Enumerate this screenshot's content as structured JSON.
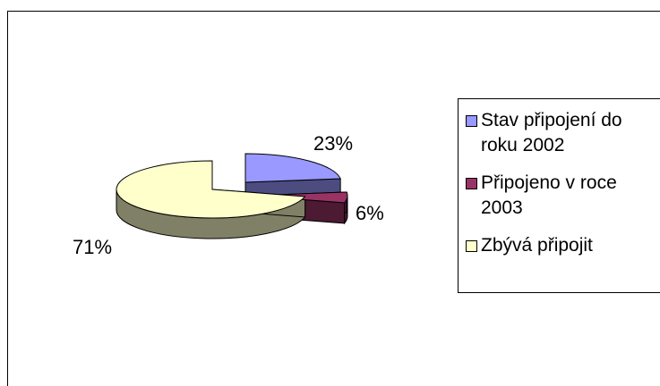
{
  "chart_data": {
    "type": "pie",
    "style": "3d-exploded",
    "categories": [
      "Stav připojení do roku 2002",
      "Připojeno v roce 2003",
      "Zbývá připojit"
    ],
    "values": [
      23,
      6,
      71
    ],
    "labels": [
      "23%",
      "6%",
      "71%"
    ],
    "colors": [
      "#9999FF",
      "#993366",
      "#FFFFCC"
    ],
    "side_colors": [
      "#4C4C80",
      "#4C1A33",
      "#808066"
    ],
    "legend_position": "right"
  }
}
